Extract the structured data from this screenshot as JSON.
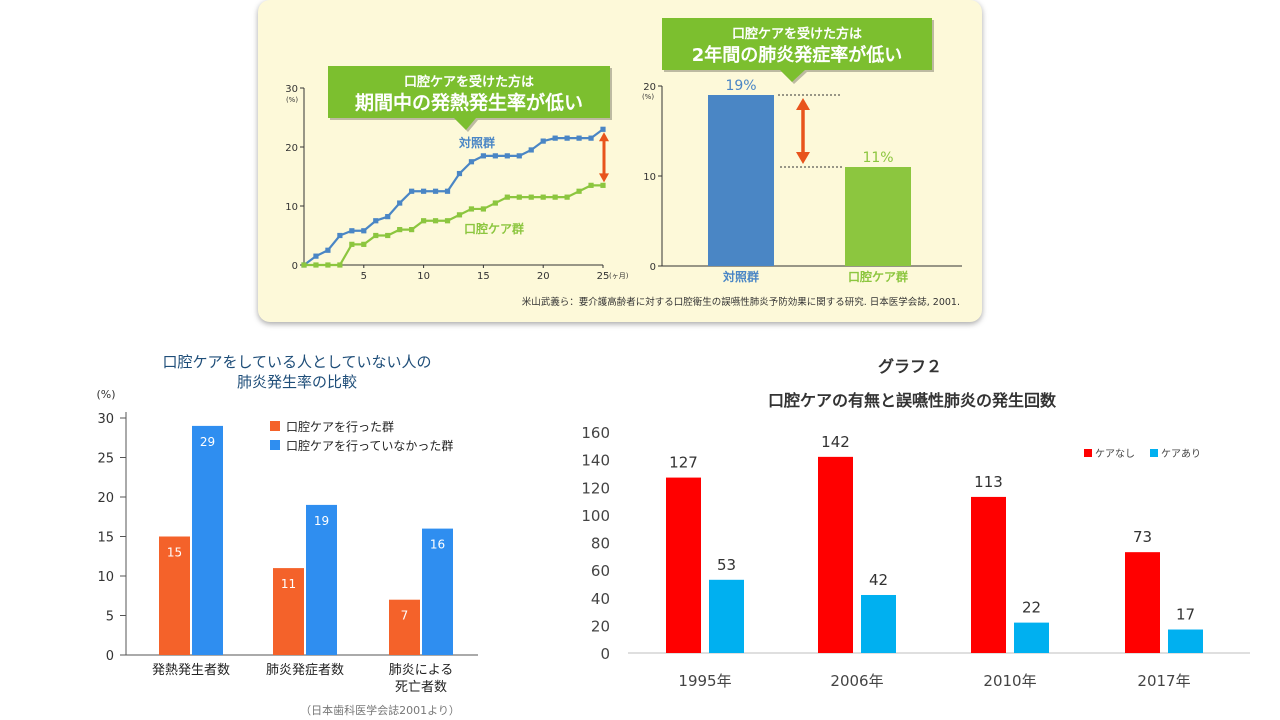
{
  "top_panel": {
    "colors": {
      "blue": "#4a86c5",
      "green": "#8cc63f",
      "callout": "#7cbf2f",
      "arrow": "#e8541c",
      "bg": "#fdf9d9"
    },
    "citation": "米山武義ら：要介護高齢者に対する口腔衛生の誤嚥性肺炎予防効果に関する研究. 日本医学会誌, 2001."
  },
  "chart_data": [
    {
      "id": "fever-rate",
      "type": "line",
      "callout": [
        "口腔ケアを受けた方は",
        "期間中の発熱発生率が低い"
      ],
      "yunit": "(%)",
      "xunit": "(ヶ月)",
      "ylim": [
        0,
        30
      ],
      "xlim": [
        0,
        25
      ],
      "yticks": [
        0,
        10,
        20,
        30
      ],
      "xticks": [
        5,
        10,
        15,
        20,
        25
      ],
      "series": [
        {
          "name": "対照群",
          "color": "#4a86c5",
          "x": [
            0,
            1,
            2,
            3,
            4,
            5,
            6,
            7,
            8,
            9,
            10,
            11,
            12,
            13,
            14,
            15,
            16,
            17,
            18,
            19,
            20,
            21,
            22,
            23,
            24,
            25
          ],
          "y": [
            0,
            1.5,
            2.5,
            5,
            5.8,
            5.8,
            7.5,
            8.2,
            10.5,
            12.5,
            12.5,
            12.5,
            12.5,
            15.5,
            17.5,
            18.5,
            18.5,
            18.5,
            18.5,
            19.5,
            21,
            21.5,
            21.5,
            21.5,
            21.5,
            23
          ]
        },
        {
          "name": "口腔ケア群",
          "color": "#8cc63f",
          "x": [
            0,
            1,
            2,
            3,
            4,
            5,
            6,
            7,
            8,
            9,
            10,
            11,
            12,
            13,
            14,
            15,
            16,
            17,
            18,
            19,
            20,
            21,
            22,
            23,
            24,
            25
          ],
          "y": [
            0,
            0,
            0,
            0,
            3.5,
            3.5,
            5,
            5,
            6,
            6,
            7.5,
            7.5,
            7.5,
            8.5,
            9.5,
            9.5,
            10.5,
            11.5,
            11.5,
            11.5,
            11.5,
            11.5,
            11.5,
            12.5,
            13.5,
            13.5
          ]
        }
      ]
    },
    {
      "id": "pneumonia-2yr",
      "type": "bar",
      "callout": [
        "口腔ケアを受けた方は",
        "2年間の肺炎発症率が低い"
      ],
      "yunit": "(%)",
      "ylim": [
        0,
        20
      ],
      "yticks": [
        0,
        10,
        20
      ],
      "categories": [
        "対照群",
        "口腔ケア群"
      ],
      "values": [
        19,
        11
      ],
      "labels": [
        "19%",
        "11%"
      ],
      "colors": [
        "#4a86c5",
        "#8cc63f"
      ]
    },
    {
      "id": "care-comparison",
      "type": "bar",
      "title": [
        "口腔ケアをしている人としていない人の",
        "肺炎発生率の比較"
      ],
      "yunit": "(%)",
      "ylim": [
        0,
        30
      ],
      "yticks": [
        0,
        5,
        10,
        15,
        20,
        25,
        30
      ],
      "categories": [
        [
          "発熱発生者数"
        ],
        [
          "肺炎発症者数"
        ],
        [
          "肺炎による",
          "死亡者数"
        ]
      ],
      "series": [
        {
          "name": "口腔ケアを行った群",
          "color": "#f4622a",
          "values": [
            15,
            11,
            7
          ]
        },
        {
          "name": "口腔ケアを行っていなかった群",
          "color": "#2f8ef0",
          "values": [
            29,
            19,
            16
          ]
        }
      ],
      "source": "（日本歯科医学会誌2001より）"
    },
    {
      "id": "graph2",
      "type": "bar",
      "title": [
        "グラフ２",
        "口腔ケアの有無と誤嚥性肺炎の発生回数"
      ],
      "ylim": [
        0,
        160
      ],
      "yticks": [
        0,
        20,
        40,
        60,
        80,
        100,
        120,
        140,
        160
      ],
      "categories": [
        "1995年",
        "2006年",
        "2010年",
        "2017年"
      ],
      "series": [
        {
          "name": "ケアなし",
          "color": "#ff0000",
          "values": [
            127,
            142,
            113,
            73
          ]
        },
        {
          "name": "ケアあり",
          "color": "#00b0f0",
          "values": [
            53,
            42,
            22,
            17
          ]
        }
      ]
    }
  ]
}
